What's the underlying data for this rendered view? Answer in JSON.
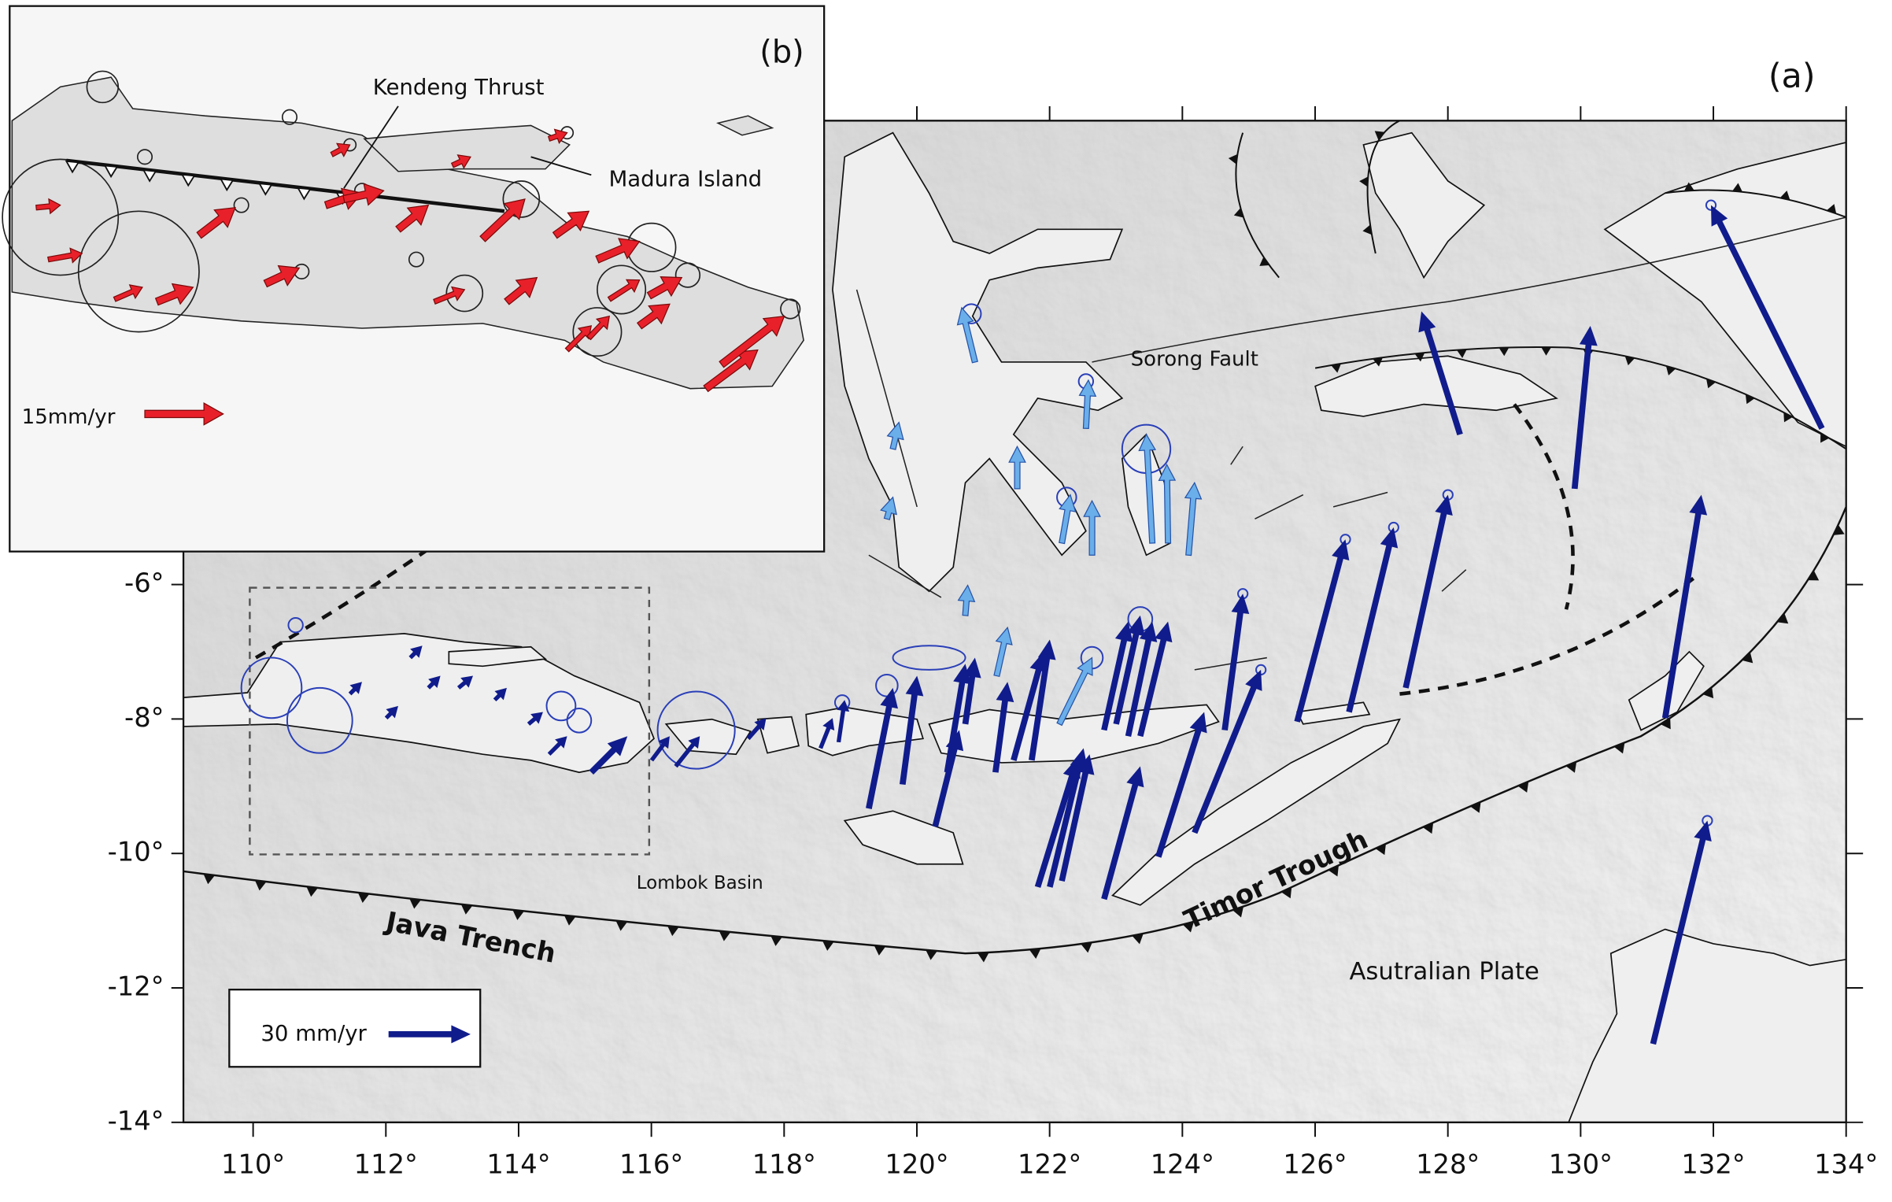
{
  "panel_a": {
    "label": "(a)",
    "xlim": [
      108.95,
      134
    ],
    "ylim": [
      -14,
      0.9
    ],
    "xticks": [
      {
        "value": 110,
        "label": "110°"
      },
      {
        "value": 112,
        "label": "112°"
      },
      {
        "value": 114,
        "label": "114°"
      },
      {
        "value": 116,
        "label": "116°"
      },
      {
        "value": 118,
        "label": "118°"
      },
      {
        "value": 120,
        "label": "120°"
      },
      {
        "value": 122,
        "label": "122°"
      },
      {
        "value": 124,
        "label": "124°"
      },
      {
        "value": 126,
        "label": "126°"
      },
      {
        "value": 128,
        "label": "128°"
      },
      {
        "value": 130,
        "label": "130°"
      },
      {
        "value": 132,
        "label": "132°"
      },
      {
        "value": 134,
        "label": "134°"
      }
    ],
    "yticks": [
      {
        "value": -6,
        "label": "-6°"
      },
      {
        "value": -8,
        "label": "-8°"
      },
      {
        "value": -10,
        "label": "-10°"
      },
      {
        "value": -12,
        "label": "-12°"
      },
      {
        "value": -14,
        "label": "-14°"
      }
    ],
    "annotations": {
      "sorong_fault": "Sorong Fault",
      "lombok_basin": "Lombok Basin",
      "java_trench": "Java Trench",
      "timor_trough": "Timor Trough",
      "australian_plate": "Asutralian Plate"
    },
    "scale_label": "30 mm/yr"
  },
  "panel_b": {
    "label": "(b)",
    "annotations": {
      "kendeng_thrust": "Kendeng Thrust",
      "madura_island": "Madura Island"
    },
    "scale_label": "15mm/yr"
  }
}
